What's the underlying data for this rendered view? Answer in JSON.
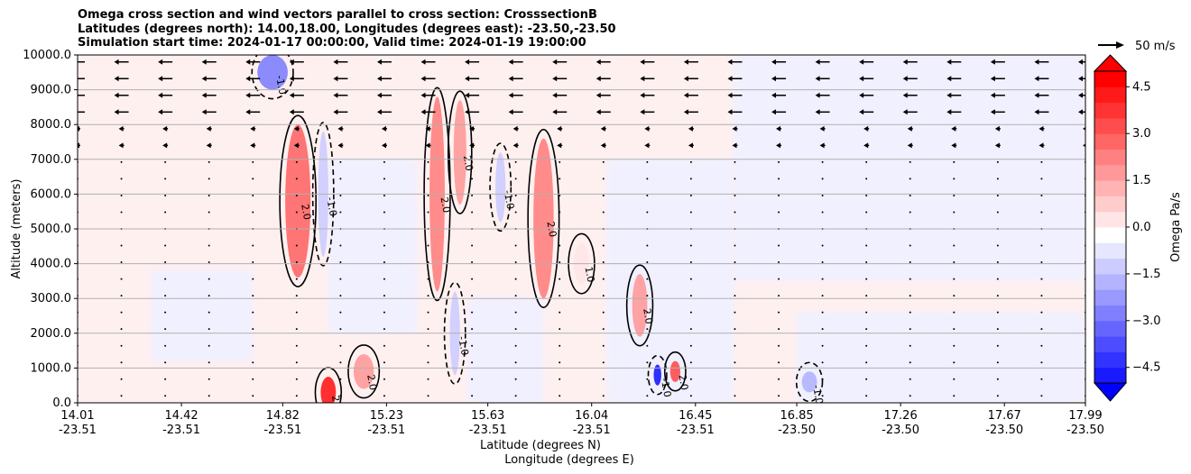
{
  "chart_data": {
    "type": "heatmap",
    "title_lines": [
      "Omega cross section and wind vectors parallel to cross section: CrosssectionB",
      "Latitudes (degrees north): 14.00,18.00, Longitudes (degrees east): -23.50,-23.50",
      "Simulation start time: 2024-01-17 00:00:00, Valid time: 2024-01-19 19:00:00"
    ],
    "ylabel": "Altitude (meters)",
    "xlabel_lines": [
      "Latitude (degrees N)",
      "Longitude (degrees E)"
    ],
    "ylim": [
      0,
      10000
    ],
    "yticks": [
      0,
      1000,
      2000,
      3000,
      4000,
      5000,
      6000,
      7000,
      8000,
      9000,
      10000
    ],
    "ytick_labels": [
      "0.0",
      "1000.0",
      "2000.0",
      "3000.0",
      "4000.0",
      "5000.0",
      "6000.0",
      "7000.0",
      "8000.0",
      "9000.0",
      "10000.0"
    ],
    "xlim": [
      14.01,
      17.99
    ],
    "xticks": [
      {
        "x": 14.01,
        "lat": "14.01",
        "lon": "-23.51"
      },
      {
        "x": 14.42,
        "lat": "14.42",
        "lon": "-23.51"
      },
      {
        "x": 14.82,
        "lat": "14.82",
        "lon": "-23.51"
      },
      {
        "x": 15.23,
        "lat": "15.23",
        "lon": "-23.51"
      },
      {
        "x": 15.63,
        "lat": "15.63",
        "lon": "-23.51"
      },
      {
        "x": 16.04,
        "lat": "16.04",
        "lon": "-23.51"
      },
      {
        "x": 16.45,
        "lat": "16.45",
        "lon": "-23.51"
      },
      {
        "x": 16.85,
        "lat": "16.85",
        "lon": "-23.50"
      },
      {
        "x": 17.26,
        "lat": "17.26",
        "lon": "-23.50"
      },
      {
        "x": 17.67,
        "lat": "17.67",
        "lon": "-23.50"
      },
      {
        "x": 17.99,
        "lat": "17.99",
        "lon": "-23.50"
      }
    ],
    "grid": "horizontal",
    "colorbar": {
      "label": "Omega Pa/s",
      "range": [
        -5.0,
        5.0
      ],
      "ticks": [
        -4.5,
        -3.0,
        -1.5,
        0.0,
        1.5,
        3.0,
        4.5
      ],
      "tick_labels": [
        "−4.5",
        "−3.0",
        "−1.5",
        "0.0",
        "1.5",
        "3.0",
        "4.5"
      ],
      "colormap": "bwr",
      "extend": "both"
    },
    "vector_key": {
      "value": 50,
      "label": "50 m/s"
    },
    "contour_levels": [
      -1.0,
      0.0,
      1.0,
      2.0
    ],
    "omega_features": [
      {
        "x": 14.88,
        "z": 5800,
        "omega": 2.8
      },
      {
        "x": 15.0,
        "z": 300,
        "omega": 4.5
      },
      {
        "x": 15.14,
        "z": 900,
        "omega": 2.0
      },
      {
        "x": 15.43,
        "z": 6000,
        "omega": 2.5
      },
      {
        "x": 15.52,
        "z": 7200,
        "omega": 2.0
      },
      {
        "x": 15.85,
        "z": 5300,
        "omega": 2.7
      },
      {
        "x": 16.23,
        "z": 2800,
        "omega": 2.0
      },
      {
        "x": 16.37,
        "z": 900,
        "omega": 3.5
      },
      {
        "x": 16.3,
        "z": 800,
        "omega": -4.5
      },
      {
        "x": 14.78,
        "z": 9500,
        "omega": -2.5
      },
      {
        "x": 14.98,
        "z": 6000,
        "omega": -1.2
      },
      {
        "x": 15.68,
        "z": 6200,
        "omega": -1.0
      },
      {
        "x": 15.5,
        "z": 2000,
        "omega": -0.8
      },
      {
        "x": 16.9,
        "z": 600,
        "omega": -1.5
      },
      {
        "x": 16.0,
        "z": 4000,
        "omega": 0.6
      }
    ],
    "wind_vectors_note": "horizontal wind parallel to cross section, mostly westward (toward decreasing latitude) above 8000 m"
  },
  "colors": {
    "positive_max": "#ff0000",
    "negative_max": "#0000ff",
    "background_positive": "#fff0f0",
    "background_negative": "#f0f0ff"
  }
}
